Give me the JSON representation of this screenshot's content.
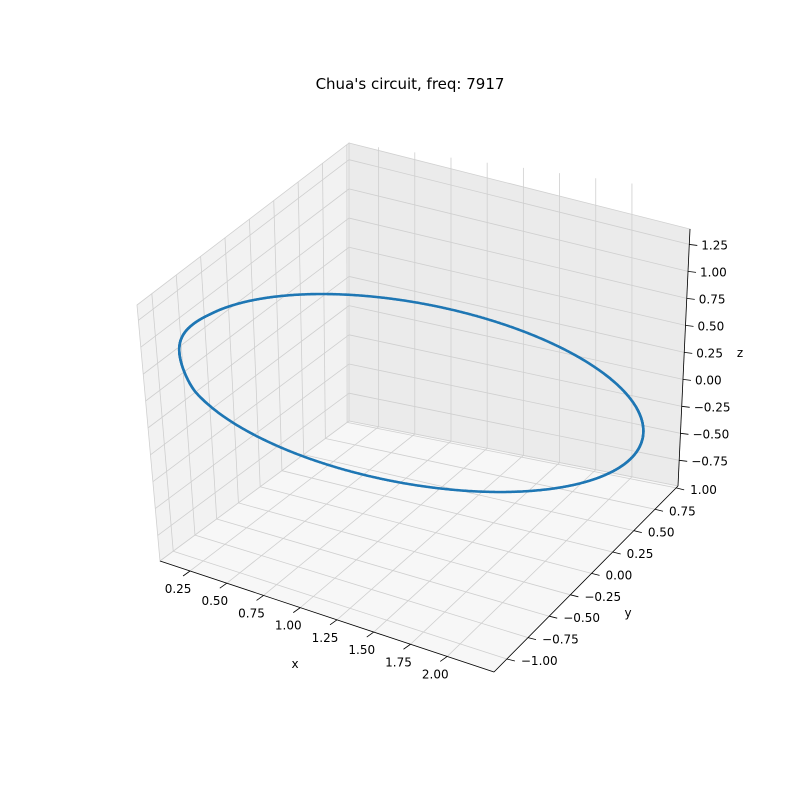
{
  "chart_data": {
    "type": "scatter",
    "title": "Chua's circuit, freq: 7917",
    "xlabel": "x",
    "ylabel": "y",
    "zlabel": "z",
    "xlim": [
      0.15,
      2.1
    ],
    "ylim": [
      -1.05,
      1.1
    ],
    "zlim": [
      -0.95,
      1.32
    ],
    "xticks": [
      "0.25",
      "0.50",
      "0.75",
      "1.00",
      "1.25",
      "1.50",
      "1.75",
      "2.00"
    ],
    "yticks": [
      "−1.00",
      "−0.75",
      "−0.50",
      "−0.25",
      "0.00",
      "0.25",
      "0.50",
      "0.75",
      "1.00"
    ],
    "zticks": [
      "−0.75",
      "−0.50",
      "−0.25",
      "0.00",
      "0.25",
      "0.50",
      "0.75",
      "1.00",
      "1.25"
    ],
    "grid": true,
    "projection": "3d",
    "marker_color": "#1f77b4",
    "orbit": {
      "shape": "closed-loop",
      "x_center": 1.1,
      "x_amplitude": 0.9,
      "y_amplitude": 1.0,
      "z_center": 0.22,
      "z_amplitude": 0.98,
      "point_count": 1200
    }
  }
}
